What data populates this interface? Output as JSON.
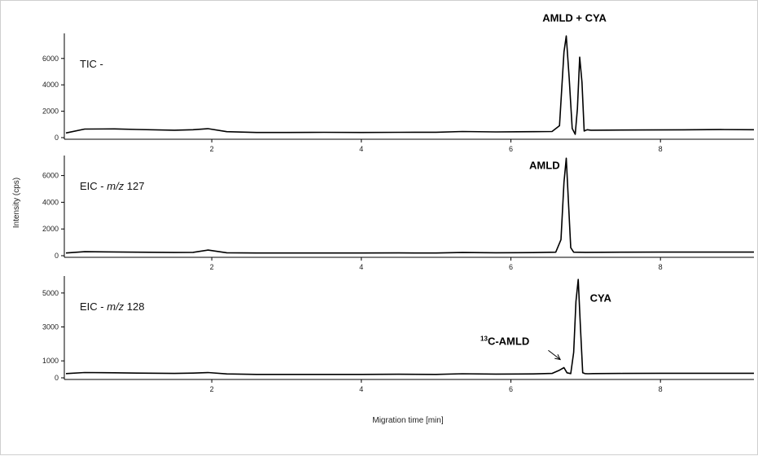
{
  "chart_data": {
    "type": "line",
    "xlabel": "Migration time [min]",
    "ylabel": "Intensity (cps)",
    "xlim": [
      0.05,
      9.25
    ],
    "x_ticks": [
      2,
      4,
      6,
      8
    ],
    "panels": [
      {
        "label": {
          "prefix": "TIC -",
          "mz": "",
          "suffix": ""
        },
        "ylim": [
          0,
          7900
        ],
        "y_ticks": [
          0,
          2000,
          4000,
          6000
        ],
        "annotations": [
          {
            "text": "AMLD + CYA",
            "x": 6.85,
            "y": 8800
          }
        ],
        "series": [
          {
            "x": [
              0.05,
              0.3,
              0.7,
              1.0,
              1.5,
              1.75,
              1.95,
              2.2,
              2.6,
              3.0,
              3.5,
              4.0,
              4.5,
              5.0,
              5.35,
              5.8,
              6.3,
              6.55,
              6.65,
              6.71,
              6.74,
              6.78,
              6.82,
              6.86,
              6.89,
              6.92,
              6.95,
              6.98,
              7.02,
              7.07,
              7.3,
              7.8,
              8.3,
              8.8,
              9.25
            ],
            "y": [
              350,
              650,
              660,
              620,
              560,
              600,
              680,
              450,
              390,
              390,
              400,
              390,
              400,
              410,
              460,
              430,
              450,
              460,
              900,
              6500,
              7700,
              4500,
              700,
              250,
              2200,
              6100,
              4200,
              500,
              600,
              560,
              570,
              580,
              590,
              610,
              600
            ]
          }
        ]
      },
      {
        "label": {
          "prefix": "EIC - ",
          "mz": "m/z",
          "suffix": " 127"
        },
        "ylim": [
          0,
          7500
        ],
        "y_ticks": [
          0,
          2000,
          4000,
          6000
        ],
        "annotations": [
          {
            "text": "AMLD",
            "x": 6.45,
            "y": 6500
          }
        ],
        "series": [
          {
            "x": [
              0.05,
              0.3,
              0.7,
              1.0,
              1.5,
              1.75,
              1.95,
              2.2,
              2.6,
              3.0,
              3.5,
              4.0,
              4.5,
              5.0,
              5.35,
              5.8,
              6.3,
              6.6,
              6.67,
              6.71,
              6.74,
              6.77,
              6.8,
              6.84,
              7.0,
              7.5,
              8.0,
              8.5,
              9.0,
              9.25
            ],
            "y": [
              200,
              300,
              280,
              260,
              240,
              250,
              420,
              220,
              200,
              200,
              200,
              200,
              210,
              200,
              240,
              220,
              230,
              260,
              1200,
              5500,
              7300,
              4000,
              600,
              260,
              250,
              260,
              270,
              270,
              270,
              270
            ]
          }
        ]
      },
      {
        "label": {
          "prefix": "EIC - ",
          "mz": "m/z",
          "suffix": " 128"
        },
        "ylim": [
          0,
          6000
        ],
        "y_ticks": [
          0,
          1000,
          3000,
          5000
        ],
        "annotations": [
          {
            "text": "CYA",
            "x": 7.2,
            "y": 4500
          },
          {
            "text_sup": "13",
            "text": "C-AMLD",
            "x": 5.92,
            "y": 1950
          }
        ],
        "arrow": {
          "from": [
            6.5,
            1620
          ],
          "to": [
            6.66,
            1080
          ]
        },
        "series": [
          {
            "x": [
              0.05,
              0.3,
              0.7,
              1.0,
              1.5,
              1.75,
              1.95,
              2.2,
              2.6,
              3.0,
              3.5,
              4.0,
              4.5,
              5.0,
              5.35,
              5.8,
              6.3,
              6.55,
              6.65,
              6.71,
              6.75,
              6.8,
              6.84,
              6.87,
              6.9,
              6.93,
              6.96,
              6.99,
              7.03,
              7.1,
              7.5,
              8.0,
              8.5,
              9.0,
              9.25
            ],
            "y": [
              250,
              310,
              300,
              280,
              260,
              280,
              310,
              230,
              200,
              200,
              200,
              200,
              210,
              200,
              240,
              220,
              230,
              260,
              450,
              600,
              300,
              250,
              1500,
              4500,
              5800,
              3000,
              300,
              250,
              240,
              250,
              260,
              270,
              270,
              270,
              270
            ]
          }
        ]
      }
    ]
  }
}
